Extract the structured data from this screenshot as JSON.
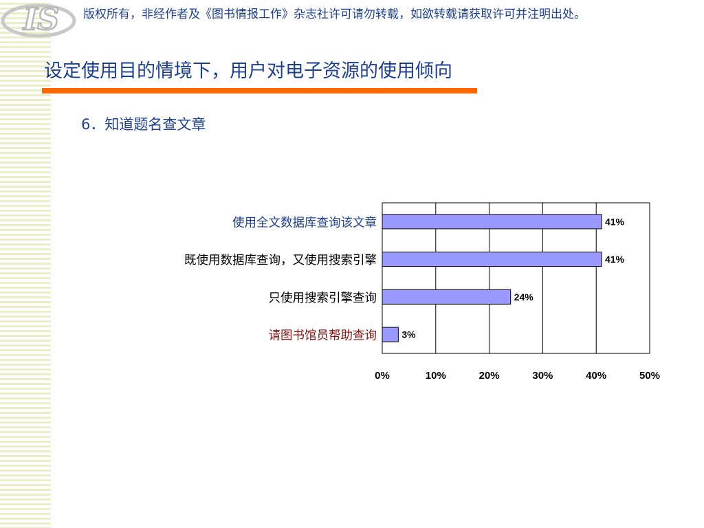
{
  "header": {
    "logo_text": "IS",
    "copyright": "版权所有，非经作者及《图书情报工作》杂志社许可请勿转载，如欲转载请获取许可并注明出处。"
  },
  "slide": {
    "title": "设定使用目的情境下，用户对电子资源的使用倾向",
    "subtitle": "6．知道题名查文章"
  },
  "chart_data": {
    "type": "bar",
    "orientation": "horizontal",
    "categories": [
      "使用全文数据库查询该文章",
      "既使用数据库查询，又使用搜索引擎",
      "只使用搜索引擎查询",
      "请图书馆员帮助查询"
    ],
    "values": [
      41,
      41,
      24,
      3
    ],
    "value_labels": [
      "41%",
      "41%",
      "24%",
      "3%"
    ],
    "category_colors": [
      "#1c3f96",
      "#000000",
      "#000000",
      "#8b1010"
    ],
    "xlim": [
      0,
      50
    ],
    "x_ticks": [
      0,
      10,
      20,
      30,
      40,
      50
    ],
    "x_tick_labels": [
      "0%",
      "10%",
      "20%",
      "30%",
      "40%",
      "50%"
    ],
    "bar_color": "#9999ff",
    "grid": "vertical",
    "legend": "none"
  }
}
